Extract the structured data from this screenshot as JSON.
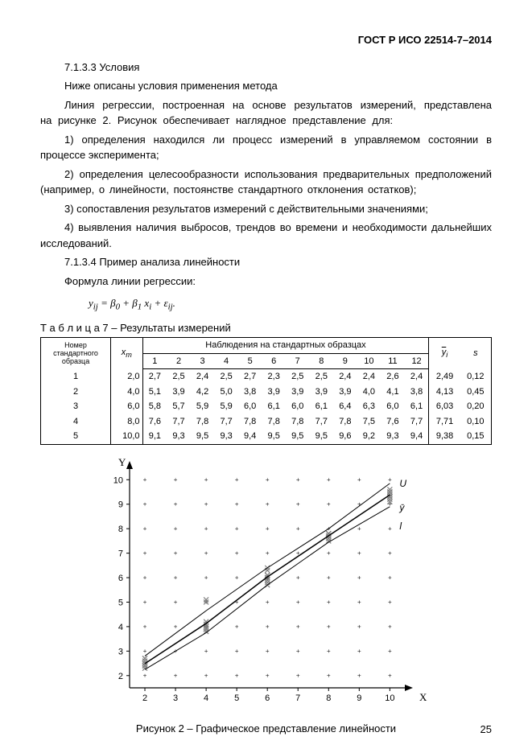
{
  "standard": "ГОСТ Р ИСО 22514-7–2014",
  "sec_7_1_3_3": "7.1.3.3 Условия",
  "p1": "Ниже описаны условия применения метода",
  "p2": "Линия регрессии, построенная на основе результатов измерений, представлена на рисунке 2. Рисунок обеспечивает наглядное представление для:",
  "p3": "1) определения находился ли процесс измерений в управляемом состоянии в процессе эксперимента;",
  "p4": "2) определения целесообразности использования предварительных предположений (например, о линейности, постоянстве стандартного отклонения остатков);",
  "p5": "3) сопоставления результатов измерений с действительными значениями;",
  "p6": "4) выявления наличия выбросов, трендов во времени и необходимости дальнейших исследований.",
  "sec_7_1_3_4": "7.1.3.4 Пример анализа линейности",
  "p7": "Формула линии регрессии:",
  "formula": "y_{ij} = β₀ + β₁ x_i + ε_{ij}.",
  "table_caption": "Т а б л и ц а  7 – Результаты измерений",
  "table": {
    "head_left": "Номер стандартного образца",
    "head_xm": "xₘ",
    "head_center": "Наблюдения на стандартных образцах",
    "head_obs": [
      "1",
      "2",
      "3",
      "4",
      "5",
      "6",
      "7",
      "8",
      "9",
      "10",
      "11",
      "12"
    ],
    "head_ybar": "ȳᵢ",
    "head_s": "s",
    "rows": [
      {
        "n": "1",
        "xm": "2,0",
        "v": [
          "2,7",
          "2,5",
          "2,4",
          "2,5",
          "2,7",
          "2,3",
          "2,5",
          "2,5",
          "2,4",
          "2,4",
          "2,6",
          "2,4"
        ],
        "ybar": "2,49",
        "s": "0,12"
      },
      {
        "n": "2",
        "xm": "4,0",
        "v": [
          "5,1",
          "3,9",
          "4,2",
          "5,0",
          "3,8",
          "3,9",
          "3,9",
          "3,9",
          "3,9",
          "4,0",
          "4,1",
          "3,8"
        ],
        "ybar": "4,13",
        "s": "0,45"
      },
      {
        "n": "3",
        "xm": "6,0",
        "v": [
          "5,8",
          "5,7",
          "5,9",
          "5,9",
          "6,0",
          "6,1",
          "6,0",
          "6,1",
          "6,4",
          "6,3",
          "6,0",
          "6,1"
        ],
        "ybar": "6,03",
        "s": "0,20"
      },
      {
        "n": "4",
        "xm": "8,0",
        "v": [
          "7,6",
          "7,7",
          "7,8",
          "7,7",
          "7,8",
          "7,8",
          "7,8",
          "7,7",
          "7,8",
          "7,5",
          "7,6",
          "7,7"
        ],
        "ybar": "7,71",
        "s": "0,10"
      },
      {
        "n": "5",
        "xm": "10,0",
        "v": [
          "9,1",
          "9,3",
          "9,5",
          "9,3",
          "9,4",
          "9,5",
          "9,5",
          "9,5",
          "9,6",
          "9,2",
          "9,3",
          "9,4"
        ],
        "ybar": "9,38",
        "s": "0,15"
      }
    ]
  },
  "chart": {
    "type": "scatter-with-lines",
    "x_label": "X",
    "y_label": "Y",
    "xlim": [
      1.5,
      10.7
    ],
    "ylim": [
      1.5,
      10.7
    ],
    "xticks": [
      2,
      3,
      4,
      5,
      6,
      7,
      8,
      9,
      10
    ],
    "yticks": [
      2,
      3,
      4,
      5,
      6,
      7,
      8,
      9,
      10
    ],
    "x_values": [
      2,
      4,
      6,
      8,
      10
    ],
    "ybar": [
      2.49,
      4.13,
      6.03,
      7.71,
      9.38
    ],
    "upper": [
      2.8,
      4.65,
      6.4,
      8.0,
      9.85
    ],
    "lower": [
      2.25,
      3.75,
      5.7,
      7.45,
      8.9
    ],
    "points": {
      "2": [
        2.7,
        2.5,
        2.4,
        2.5,
        2.7,
        2.3,
        2.5,
        2.5,
        2.4,
        2.4,
        2.6,
        2.4
      ],
      "4": [
        5.1,
        3.9,
        4.2,
        5.0,
        3.8,
        3.9,
        3.9,
        3.9,
        3.9,
        4.0,
        4.1,
        3.8
      ],
      "6": [
        5.8,
        5.7,
        5.9,
        5.9,
        6.0,
        6.1,
        6.0,
        6.1,
        6.4,
        6.3,
        6.0,
        6.1
      ],
      "8": [
        7.6,
        7.7,
        7.8,
        7.7,
        7.8,
        7.8,
        7.8,
        7.7,
        7.8,
        7.5,
        7.6,
        7.7
      ],
      "10": [
        9.1,
        9.3,
        9.5,
        9.3,
        9.4,
        9.5,
        9.5,
        9.5,
        9.6,
        9.2,
        9.3,
        9.4
      ]
    },
    "annotations": {
      "U": "U",
      "ybar": "ȳ",
      "l": "l"
    },
    "colors": {
      "axis": "#000",
      "grid": "#000",
      "marker": "#808080",
      "line": "#000"
    }
  },
  "figure_caption": "Рисунок 2 – Графическое представление линейности",
  "page_number": "25"
}
